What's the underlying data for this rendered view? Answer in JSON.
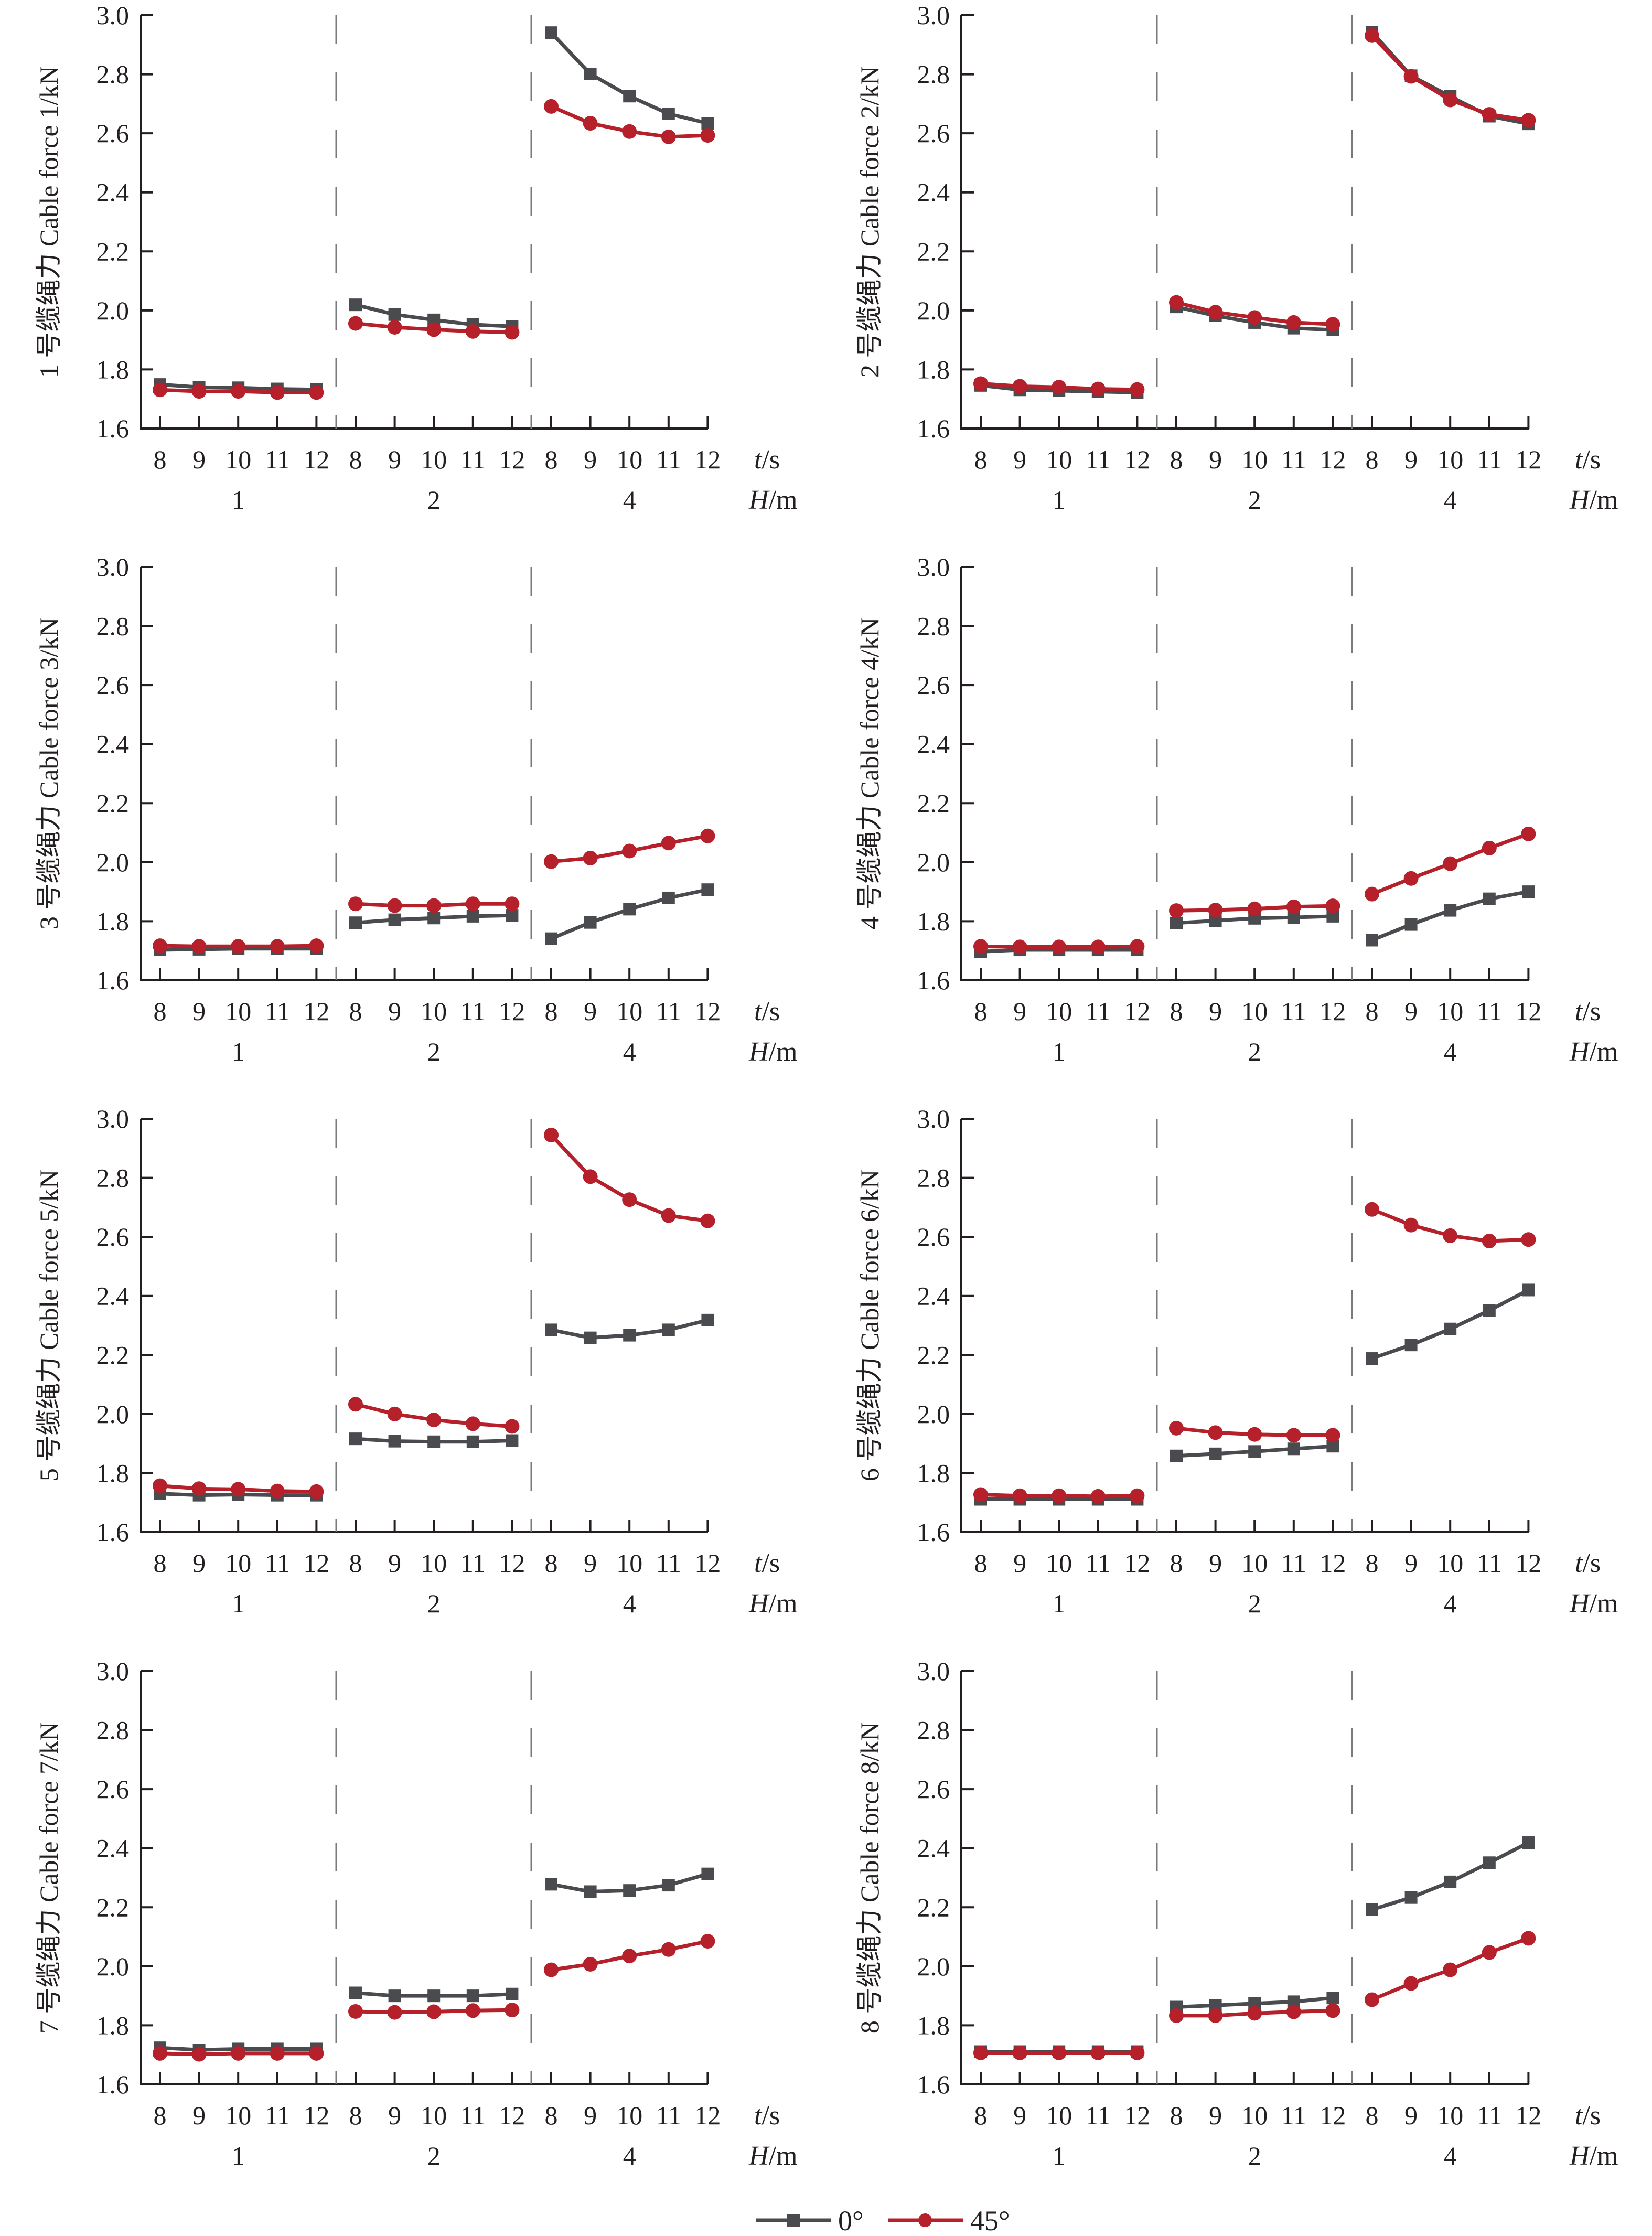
{
  "chart_data": {
    "type": "line",
    "layout": "4 rows x 2 columns small multiples",
    "x_axis": {
      "inner_label": "t/s",
      "outer_label": "H/m",
      "groups": [
        "1",
        "2",
        "4"
      ],
      "categories": [
        "8",
        "9",
        "10",
        "11",
        "12"
      ]
    },
    "ylim": [
      1.6,
      3.0
    ],
    "y_ticks": [
      "1.6",
      "1.8",
      "2.0",
      "2.2",
      "2.4",
      "2.6",
      "2.8",
      "3.0"
    ],
    "grid": false,
    "group_separators": "dashed vertical lines",
    "legend": {
      "placement": "bottom-center",
      "entries": [
        {
          "name": "0°",
          "color": "#4a4b4f",
          "marker": "square"
        },
        {
          "name": "45°",
          "color": "#b5202a",
          "marker": "circle"
        }
      ]
    },
    "panels": [
      {
        "ylabel": "1 号缆绳力 Cable force 1/kN",
        "series": [
          {
            "name": "0°",
            "values": [
              [
                1.749,
                1.74,
                1.738,
                1.734,
                1.732
              ],
              [
                2.019,
                1.986,
                1.968,
                1.952,
                1.946
              ],
              [
                2.941,
                2.801,
                2.726,
                2.666,
                2.634
              ]
            ]
          },
          {
            "name": "45°",
            "values": [
              [
                1.731,
                1.726,
                1.726,
                1.722,
                1.722
              ],
              [
                1.956,
                1.943,
                1.935,
                1.929,
                1.926
              ],
              [
                2.691,
                2.634,
                2.606,
                2.588,
                2.593
              ]
            ]
          }
        ]
      },
      {
        "ylabel": "2 号缆绳力 Cable force 2/kN",
        "series": [
          {
            "name": "0°",
            "values": [
              [
                1.746,
                1.731,
                1.728,
                1.725,
                1.722
              ],
              [
                2.012,
                1.982,
                1.959,
                1.94,
                1.934
              ],
              [
                2.943,
                2.795,
                2.725,
                2.658,
                2.632
              ]
            ]
          },
          {
            "name": "45°",
            "values": [
              [
                1.752,
                1.743,
                1.74,
                1.734,
                1.732
              ],
              [
                2.027,
                1.994,
                1.976,
                1.959,
                1.953
              ],
              [
                2.931,
                2.793,
                2.713,
                2.664,
                2.644
              ]
            ]
          }
        ]
      },
      {
        "ylabel": "3 号缆绳力 Cable force 3/kN",
        "series": [
          {
            "name": "0°",
            "values": [
              [
                1.703,
                1.705,
                1.707,
                1.707,
                1.707
              ],
              [
                1.795,
                1.805,
                1.811,
                1.817,
                1.82
              ],
              [
                1.741,
                1.796,
                1.841,
                1.879,
                1.907
              ]
            ]
          },
          {
            "name": "45°",
            "values": [
              [
                1.717,
                1.715,
                1.715,
                1.715,
                1.717
              ],
              [
                1.859,
                1.853,
                1.853,
                1.859,
                1.859
              ],
              [
                2.002,
                2.014,
                2.038,
                2.065,
                2.089
              ]
            ]
          }
        ]
      },
      {
        "ylabel": "4 号缆绳力 Cable force 4/kN",
        "series": [
          {
            "name": "0°",
            "values": [
              [
                1.697,
                1.703,
                1.703,
                1.703,
                1.703
              ],
              [
                1.794,
                1.802,
                1.81,
                1.813,
                1.817
              ],
              [
                1.736,
                1.789,
                1.837,
                1.876,
                1.9
              ]
            ]
          },
          {
            "name": "45°",
            "values": [
              [
                1.715,
                1.713,
                1.713,
                1.713,
                1.715
              ],
              [
                1.836,
                1.838,
                1.842,
                1.849,
                1.852
              ],
              [
                1.892,
                1.945,
                1.995,
                2.048,
                2.096
              ]
            ]
          }
        ]
      },
      {
        "ylabel": "5 号缆绳力 Cable force 5/kN",
        "series": [
          {
            "name": "0°",
            "values": [
              [
                1.73,
                1.725,
                1.727,
                1.725,
                1.725
              ],
              [
                1.916,
                1.908,
                1.906,
                1.906,
                1.91
              ],
              [
                2.285,
                2.258,
                2.267,
                2.285,
                2.318
              ]
            ]
          },
          {
            "name": "45°",
            "values": [
              [
                1.757,
                1.747,
                1.745,
                1.739,
                1.737
              ],
              [
                2.033,
                2.0,
                1.98,
                1.967,
                1.958
              ],
              [
                2.945,
                2.804,
                2.726,
                2.672,
                2.654
              ]
            ]
          }
        ]
      },
      {
        "ylabel": "6 号缆绳力 Cable force 6/kN",
        "series": [
          {
            "name": "0°",
            "values": [
              [
                1.711,
                1.711,
                1.711,
                1.711,
                1.711
              ],
              [
                1.858,
                1.865,
                1.873,
                1.882,
                1.891
              ],
              [
                2.188,
                2.234,
                2.288,
                2.351,
                2.42
              ]
            ]
          },
          {
            "name": "45°",
            "values": [
              [
                1.727,
                1.723,
                1.723,
                1.721,
                1.723
              ],
              [
                1.952,
                1.937,
                1.931,
                1.928,
                1.928
              ],
              [
                2.693,
                2.64,
                2.604,
                2.586,
                2.591
              ]
            ]
          }
        ]
      },
      {
        "ylabel": "7 号缆绳力 Cable force 7/kN",
        "series": [
          {
            "name": "0°",
            "values": [
              [
                1.724,
                1.717,
                1.72,
                1.72,
                1.72
              ],
              [
                1.91,
                1.9,
                1.9,
                1.9,
                1.906
              ],
              [
                2.278,
                2.253,
                2.257,
                2.275,
                2.313
              ]
            ]
          },
          {
            "name": "45°",
            "values": [
              [
                1.705,
                1.702,
                1.705,
                1.705,
                1.705
              ],
              [
                1.847,
                1.844,
                1.846,
                1.85,
                1.852
              ],
              [
                1.988,
                2.007,
                2.035,
                2.057,
                2.085
              ]
            ]
          }
        ]
      },
      {
        "ylabel": "8 号缆绳力 Cable force 8/kN",
        "series": [
          {
            "name": "0°",
            "values": [
              [
                1.711,
                1.711,
                1.711,
                1.711,
                1.711
              ],
              [
                1.862,
                1.868,
                1.874,
                1.88,
                1.893
              ],
              [
                2.192,
                2.233,
                2.286,
                2.351,
                2.419
              ]
            ]
          },
          {
            "name": "45°",
            "values": [
              [
                1.707,
                1.707,
                1.707,
                1.707,
                1.707
              ],
              [
                1.833,
                1.833,
                1.841,
                1.846,
                1.85
              ],
              [
                1.887,
                1.942,
                1.988,
                2.047,
                2.095
              ]
            ]
          }
        ]
      }
    ]
  }
}
